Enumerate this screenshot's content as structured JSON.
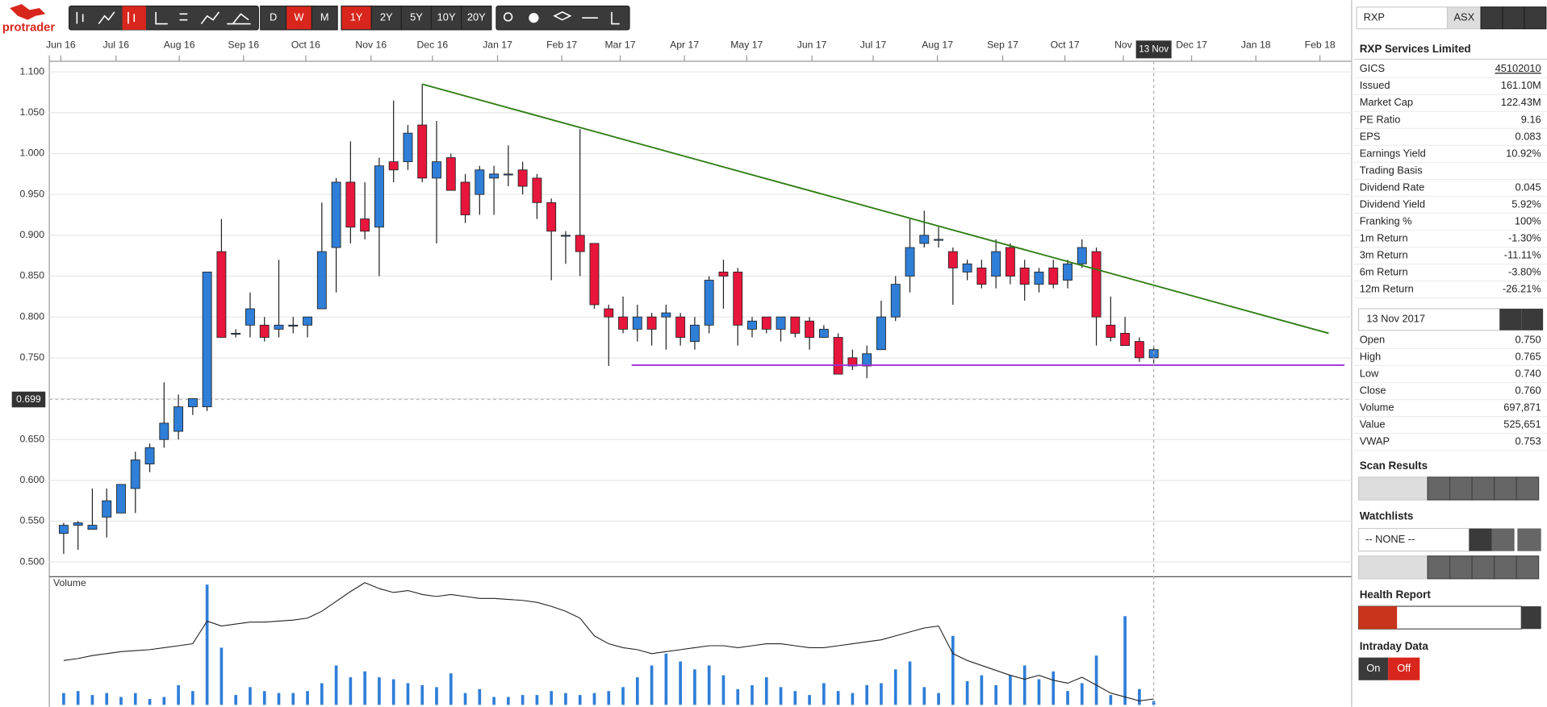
{
  "logo": "protrader",
  "toolbar": {
    "intervals": [
      "D",
      "W",
      "M"
    ],
    "active_interval": 1,
    "ranges": [
      "1Y",
      "2Y",
      "5Y",
      "10Y",
      "20Y"
    ],
    "active_range": 0
  },
  "chart_data": {
    "type": "candlestick",
    "xlim": [
      -1.0,
      89.8
    ],
    "xticks": [
      {
        "value": -0.2,
        "label": "Jun 16"
      },
      {
        "value": 3.65,
        "label": "Jul 16"
      },
      {
        "value": 8.06,
        "label": "Aug 16"
      },
      {
        "value": 12.54,
        "label": "Sep 16"
      },
      {
        "value": 16.88,
        "label": "Oct 16"
      },
      {
        "value": 21.43,
        "label": "Nov 16"
      },
      {
        "value": 25.71,
        "label": "Dec 16"
      },
      {
        "value": 30.25,
        "label": "Jan 17"
      },
      {
        "value": 34.73,
        "label": "Feb 17"
      },
      {
        "value": 38.8,
        "label": "Mar 17"
      },
      {
        "value": 43.28,
        "label": "Apr 17"
      },
      {
        "value": 47.62,
        "label": "May 17"
      },
      {
        "value": 52.17,
        "label": "Jun 17"
      },
      {
        "value": 56.44,
        "label": "Jul 17"
      },
      {
        "value": 60.92,
        "label": "Aug 17"
      },
      {
        "value": 65.47,
        "label": "Sep 17"
      },
      {
        "value": 69.81,
        "label": "Oct 17"
      },
      {
        "value": 73.88,
        "label": "Nov"
      },
      {
        "value": 78.64,
        "label": "Dec 17"
      },
      {
        "value": 83.12,
        "label": "Jan 18"
      },
      {
        "value": 87.59,
        "label": "Feb 18"
      }
    ],
    "ylim": [
      0.482,
      1.113
    ],
    "yticks": [
      {
        "value": 0.5,
        "label": "0.500"
      },
      {
        "value": 0.55,
        "label": "0.550"
      },
      {
        "value": 0.6,
        "label": "0.600"
      },
      {
        "value": 0.65,
        "label": "0.650"
      },
      {
        "value": 0.7,
        "label": "0.700"
      },
      {
        "value": 0.75,
        "label": "0.750"
      },
      {
        "value": 0.8,
        "label": "0.800"
      },
      {
        "value": 0.85,
        "label": "0.850"
      },
      {
        "value": 0.9,
        "label": "0.900"
      },
      {
        "value": 0.95,
        "label": "0.950"
      },
      {
        "value": 1.0,
        "label": "1.000"
      },
      {
        "value": 1.05,
        "label": "1.050"
      },
      {
        "value": 1.1,
        "label": "1.100"
      }
    ],
    "grid": true,
    "up_color": "#2f7ed8",
    "down_color": "#e8163c",
    "ohlc": [
      [
        0.535,
        0.548,
        0.51,
        0.545
      ],
      [
        0.545,
        0.55,
        0.515,
        0.548
      ],
      [
        0.54,
        0.59,
        0.54,
        0.545
      ],
      [
        0.555,
        0.59,
        0.53,
        0.575
      ],
      [
        0.56,
        0.595,
        0.56,
        0.595
      ],
      [
        0.59,
        0.635,
        0.56,
        0.625
      ],
      [
        0.62,
        0.645,
        0.61,
        0.64
      ],
      [
        0.65,
        0.72,
        0.64,
        0.67
      ],
      [
        0.66,
        0.705,
        0.65,
        0.69
      ],
      [
        0.69,
        0.7,
        0.68,
        0.7
      ],
      [
        0.69,
        0.855,
        0.685,
        0.855
      ],
      [
        0.88,
        0.92,
        0.775,
        0.775
      ],
      [
        0.78,
        0.785,
        0.775,
        0.78
      ],
      [
        0.79,
        0.83,
        0.775,
        0.81
      ],
      [
        0.79,
        0.8,
        0.77,
        0.775
      ],
      [
        0.785,
        0.87,
        0.775,
        0.79
      ],
      [
        0.79,
        0.8,
        0.78,
        0.79
      ],
      [
        0.79,
        0.8,
        0.775,
        0.8
      ],
      [
        0.81,
        0.94,
        0.81,
        0.88
      ],
      [
        0.885,
        0.97,
        0.83,
        0.965
      ],
      [
        0.965,
        1.015,
        0.89,
        0.91
      ],
      [
        0.92,
        0.965,
        0.895,
        0.905
      ],
      [
        0.91,
        0.995,
        0.85,
        0.985
      ],
      [
        0.99,
        1.065,
        0.965,
        0.98
      ],
      [
        0.99,
        1.035,
        0.98,
        1.025
      ],
      [
        1.035,
        1.085,
        0.965,
        0.97
      ],
      [
        0.97,
        1.04,
        0.89,
        0.99
      ],
      [
        0.995,
        1.0,
        0.955,
        0.955
      ],
      [
        0.965,
        0.975,
        0.915,
        0.925
      ],
      [
        0.95,
        0.985,
        0.925,
        0.98
      ],
      [
        0.97,
        0.985,
        0.925,
        0.975
      ],
      [
        0.975,
        1.01,
        0.96,
        0.975
      ],
      [
        0.98,
        0.99,
        0.95,
        0.96
      ],
      [
        0.97,
        0.975,
        0.92,
        0.94
      ],
      [
        0.94,
        0.945,
        0.845,
        0.905
      ],
      [
        0.9,
        0.905,
        0.865,
        0.9
      ],
      [
        0.9,
        1.03,
        0.85,
        0.88
      ],
      [
        0.89,
        0.89,
        0.81,
        0.815
      ],
      [
        0.81,
        0.815,
        0.74,
        0.8
      ],
      [
        0.8,
        0.825,
        0.78,
        0.785
      ],
      [
        0.785,
        0.815,
        0.77,
        0.8
      ],
      [
        0.8,
        0.805,
        0.765,
        0.785
      ],
      [
        0.8,
        0.815,
        0.76,
        0.805
      ],
      [
        0.8,
        0.805,
        0.765,
        0.775
      ],
      [
        0.77,
        0.8,
        0.76,
        0.79
      ],
      [
        0.79,
        0.85,
        0.78,
        0.845
      ],
      [
        0.855,
        0.87,
        0.81,
        0.85
      ],
      [
        0.855,
        0.86,
        0.765,
        0.79
      ],
      [
        0.785,
        0.8,
        0.775,
        0.795
      ],
      [
        0.8,
        0.8,
        0.78,
        0.785
      ],
      [
        0.785,
        0.8,
        0.77,
        0.8
      ],
      [
        0.8,
        0.8,
        0.775,
        0.78
      ],
      [
        0.795,
        0.8,
        0.76,
        0.775
      ],
      [
        0.775,
        0.79,
        0.775,
        0.785
      ],
      [
        0.775,
        0.78,
        0.73,
        0.73
      ],
      [
        0.75,
        0.76,
        0.735,
        0.74
      ],
      [
        0.74,
        0.765,
        0.725,
        0.755
      ],
      [
        0.76,
        0.82,
        0.76,
        0.8
      ],
      [
        0.8,
        0.85,
        0.795,
        0.84
      ],
      [
        0.85,
        0.92,
        0.83,
        0.885
      ],
      [
        0.89,
        0.93,
        0.885,
        0.9
      ],
      [
        0.895,
        0.91,
        0.885,
        0.895
      ],
      [
        0.88,
        0.885,
        0.815,
        0.86
      ],
      [
        0.855,
        0.87,
        0.845,
        0.865
      ],
      [
        0.86,
        0.87,
        0.835,
        0.84
      ],
      [
        0.85,
        0.895,
        0.835,
        0.88
      ],
      [
        0.885,
        0.89,
        0.84,
        0.85
      ],
      [
        0.86,
        0.87,
        0.82,
        0.84
      ],
      [
        0.84,
        0.86,
        0.83,
        0.855
      ],
      [
        0.86,
        0.87,
        0.835,
        0.84
      ],
      [
        0.845,
        0.87,
        0.835,
        0.865
      ],
      [
        0.865,
        0.895,
        0.86,
        0.885
      ],
      [
        0.88,
        0.885,
        0.765,
        0.8
      ],
      [
        0.79,
        0.825,
        0.77,
        0.775
      ],
      [
        0.78,
        0.8,
        0.765,
        0.765
      ],
      [
        0.77,
        0.775,
        0.745,
        0.75
      ],
      [
        0.75,
        0.765,
        0.74,
        0.76
      ]
    ],
    "trendlines": [
      {
        "color": "#2e7d12",
        "x": [
          25,
          88.2
        ],
        "y": [
          1.085,
          0.78
        ]
      },
      {
        "color": "#9b30d9",
        "x": [
          39.6,
          89.3
        ],
        "y": [
          0.741,
          0.741
        ]
      }
    ],
    "price_marker": {
      "value": 0.699,
      "label": "0.699"
    },
    "cursor": {
      "x": 76,
      "label": "13 Nov"
    },
    "volume": {
      "label": "Volume",
      "ylim": [
        0,
        130
      ],
      "color": "#2f7ed8",
      "values": [
        12,
        14,
        10,
        12,
        8,
        12,
        6,
        8,
        20,
        14,
        122,
        58,
        10,
        18,
        14,
        12,
        12,
        14,
        22,
        40,
        28,
        34,
        28,
        26,
        22,
        20,
        18,
        32,
        12,
        16,
        8,
        8,
        10,
        10,
        14,
        12,
        10,
        12,
        14,
        18,
        28,
        40,
        52,
        44,
        36,
        40,
        30,
        16,
        20,
        28,
        18,
        14,
        10,
        22,
        14,
        12,
        20,
        22,
        36,
        44,
        18,
        12,
        70,
        24,
        30,
        20,
        30,
        40,
        26,
        34,
        14,
        22,
        50,
        10,
        90,
        16,
        4
      ],
      "average": [
        45,
        47,
        50,
        52,
        54,
        55,
        56,
        58,
        60,
        62,
        85,
        80,
        82,
        84,
        84,
        85,
        86,
        88,
        95,
        105,
        115,
        124,
        118,
        114,
        116,
        112,
        110,
        112,
        110,
        108,
        108,
        107,
        106,
        104,
        100,
        95,
        88,
        70,
        62,
        58,
        56,
        52,
        54,
        56,
        58,
        60,
        60,
        58,
        60,
        62,
        62,
        60,
        58,
        58,
        60,
        62,
        64,
        66,
        70,
        74,
        78,
        80,
        52,
        45,
        40,
        35,
        30,
        26,
        30,
        25,
        22,
        28,
        20,
        12,
        8,
        4,
        6
      ]
    }
  },
  "sidebar": {
    "search": "RXP",
    "exchange": "ASX",
    "company": "RXP Services Limited",
    "stats": [
      {
        "label": "GICS",
        "value": "45102010"
      },
      {
        "label": "Issued",
        "value": "161.10M"
      },
      {
        "label": "Market Cap",
        "value": "122.43M"
      },
      {
        "label": "PE Ratio",
        "value": "9.16"
      },
      {
        "label": "EPS",
        "value": "0.083"
      },
      {
        "label": "Earnings Yield",
        "value": "10.92%"
      },
      {
        "label": "Trading Basis"
      },
      {
        "label": "Dividend Rate",
        "value": "0.045"
      },
      {
        "label": "Dividend Yield",
        "value": "5.92%"
      },
      {
        "label": "Franking %",
        "value": "100%"
      },
      {
        "label": "1m Return",
        "value": "-1.30%"
      },
      {
        "label": "3m Return",
        "value": "-11.11%"
      },
      {
        "label": "6m Return",
        "value": "-3.80%"
      },
      {
        "label": "12m Return",
        "value": "-26.21%"
      }
    ],
    "date": "13 Nov 2017",
    "quote": [
      {
        "label": "Open",
        "value": "0.750"
      },
      {
        "label": "High",
        "value": "0.765"
      },
      {
        "label": "Low",
        "value": "0.740"
      },
      {
        "label": "Close",
        "value": "0.760"
      },
      {
        "label": "Volume",
        "value": "697,871"
      },
      {
        "label": "Value",
        "value": "525,651"
      },
      {
        "label": "VWAP",
        "value": "0.753"
      }
    ],
    "scan_results": "Scan Results",
    "watchlists": "Watchlists",
    "watchlist_selected": "-- NONE --",
    "health_report": "Health Report",
    "intraday": "Intraday Data",
    "intraday_on": "On",
    "intraday_off": "Off"
  }
}
